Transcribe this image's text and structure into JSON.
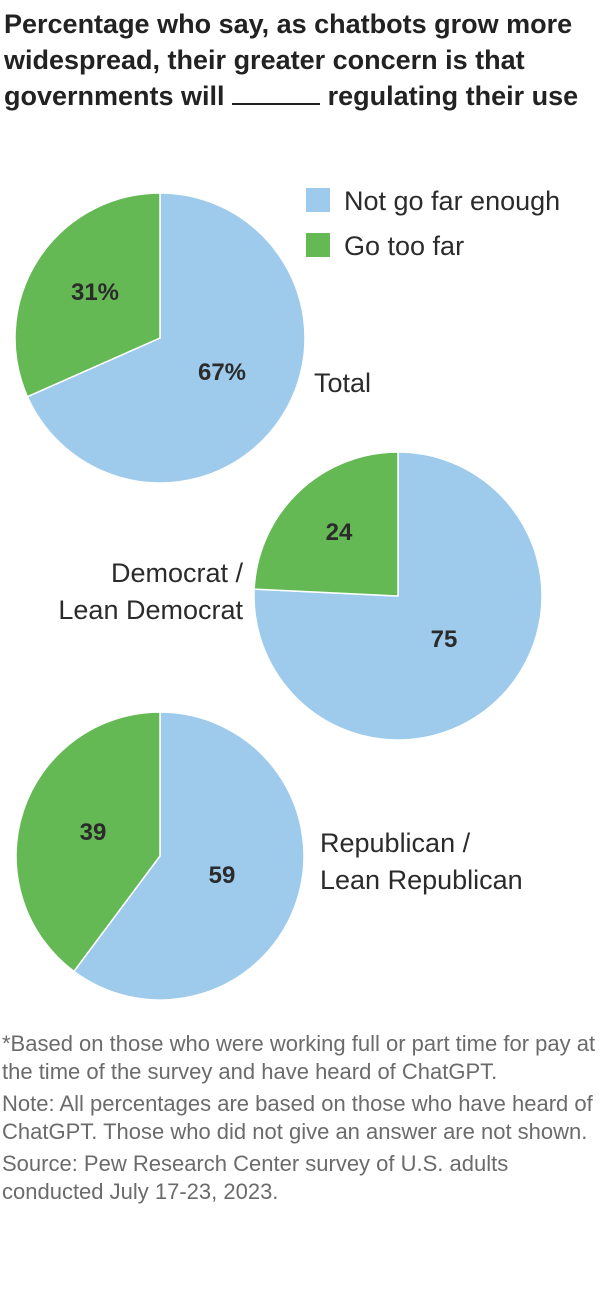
{
  "title": {
    "part1": "Percentage who say, as chatbots grow more widespread, their greater concern is that governments will",
    "part2": "regulating their use"
  },
  "colors": {
    "not_far_enough": "#9ecbec",
    "too_far": "#65b954",
    "stroke": "#ffffff"
  },
  "chart_data": {
    "type": "pie",
    "title": "Percentage who say, as chatbots grow more widespread, their greater concern is that governments will______ regulating their use",
    "legend": [
      "Not go far enough",
      "Go too far"
    ],
    "legend_position": "top-right",
    "series": [
      {
        "name": "Total",
        "label_lines": [
          "Total"
        ],
        "values": [
          67,
          31
        ],
        "value_labels": [
          "67%",
          "31%"
        ]
      },
      {
        "name": "Democrat / Lean Democrat",
        "label_lines": [
          "Democrat /",
          "Lean Democrat"
        ],
        "values": [
          75,
          24
        ],
        "value_labels": [
          "75",
          "24"
        ]
      },
      {
        "name": "Republican / Lean Republican",
        "label_lines": [
          "Republican /",
          "Lean Republican"
        ],
        "values": [
          59,
          39
        ],
        "value_labels": [
          "59",
          "39"
        ]
      }
    ]
  },
  "footnotes": {
    "note1": "*Based on those who were working full or part time for pay at the time of the survey and have heard of ChatGPT.",
    "note2": "Note: All percentages are based on those who have heard of ChatGPT. Those who did not give an answer are not shown.",
    "source": "Source: Pew Research Center survey of U.S. adults conducted July 17-23, 2023."
  }
}
